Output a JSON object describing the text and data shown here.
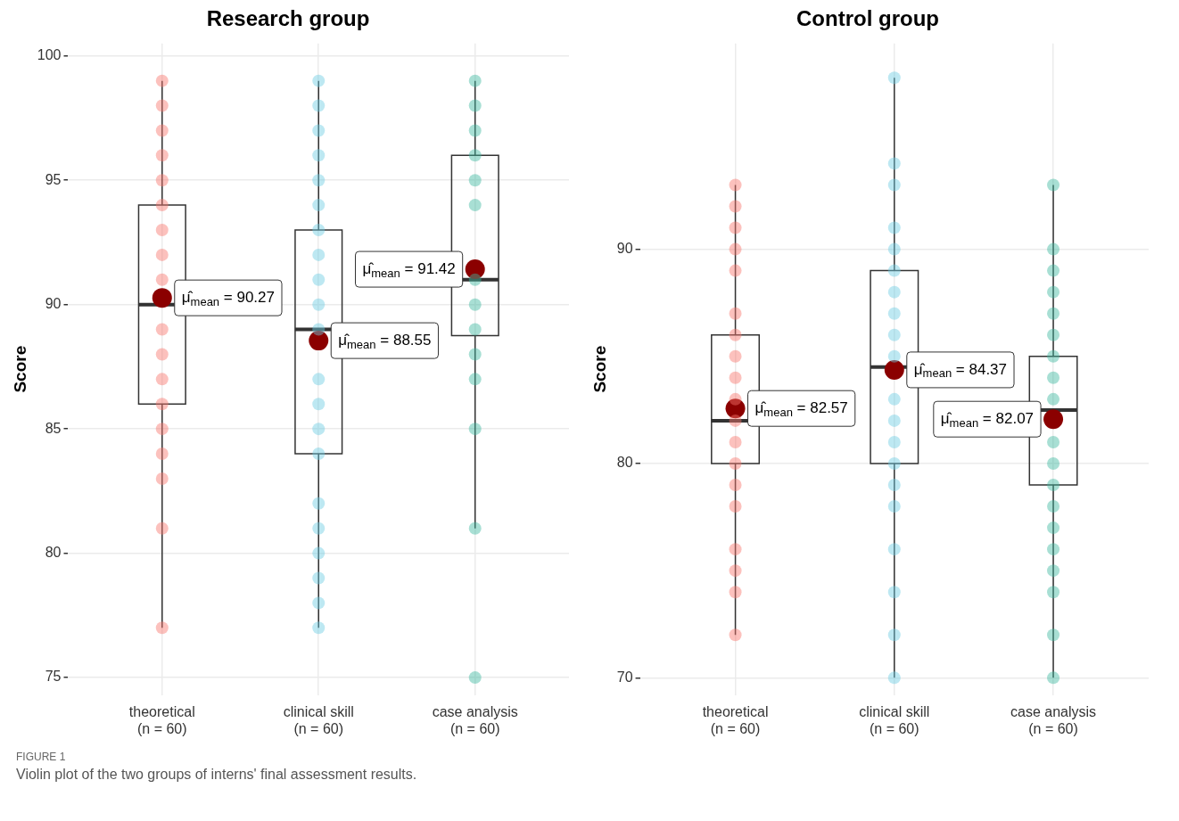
{
  "chart_data": [
    {
      "type": "box",
      "title": "Research group",
      "ylabel": "Score",
      "categories": [
        "theoretical\n(n = 60)",
        "clinical skill\n(n = 60)",
        "case analysis\n(n = 60)"
      ],
      "ylim": [
        74.3,
        100.5
      ],
      "yticks": [
        75,
        80,
        85,
        90,
        95,
        100
      ],
      "grid": true,
      "marker": "circle",
      "series": [
        {
          "type": "box",
          "color": "#333333",
          "boxes": [
            {
              "low": 77,
              "q1": 86,
              "median": 90,
              "q3": 94,
              "high": 99
            },
            {
              "low": 77,
              "q1": 84,
              "median": 89,
              "q3": 93,
              "high": 99
            },
            {
              "low": 81,
              "q1": 88.75,
              "median": 91,
              "q3": 96,
              "high": 99
            }
          ]
        },
        {
          "type": "scatter",
          "color": "#f8766d",
          "x": [
            "theoretical\n(n = 60)",
            "theoretical\n(n = 60)",
            "theoretical\n(n = 60)",
            "theoretical\n(n = 60)",
            "theoretical\n(n = 60)",
            "theoretical\n(n = 60)",
            "theoretical\n(n = 60)",
            "theoretical\n(n = 60)",
            "theoretical\n(n = 60)",
            "theoretical\n(n = 60)",
            "theoretical\n(n = 60)",
            "theoretical\n(n = 60)",
            "theoretical\n(n = 60)",
            "theoretical\n(n = 60)",
            "theoretical\n(n = 60)",
            "theoretical\n(n = 60)",
            "theoretical\n(n = 60)",
            "theoretical\n(n = 60)"
          ],
          "values": [
            99,
            98,
            97,
            96,
            95,
            94,
            93,
            92,
            91,
            89,
            88,
            87,
            86,
            85,
            84,
            83,
            81,
            77
          ]
        },
        {
          "type": "scatter",
          "color": "#6ccbe2",
          "x": [
            "clinical skill\n(n = 60)",
            "clinical skill\n(n = 60)",
            "clinical skill\n(n = 60)",
            "clinical skill\n(n = 60)",
            "clinical skill\n(n = 60)",
            "clinical skill\n(n = 60)",
            "clinical skill\n(n = 60)",
            "clinical skill\n(n = 60)",
            "clinical skill\n(n = 60)",
            "clinical skill\n(n = 60)",
            "clinical skill\n(n = 60)",
            "clinical skill\n(n = 60)",
            "clinical skill\n(n = 60)",
            "clinical skill\n(n = 60)",
            "clinical skill\n(n = 60)",
            "clinical skill\n(n = 60)",
            "clinical skill\n(n = 60)",
            "clinical skill\n(n = 60)",
            "clinical skill\n(n = 60)",
            "clinical skill\n(n = 60)",
            "clinical skill\n(n = 60)"
          ],
          "values": [
            99,
            98,
            97,
            96,
            95,
            94,
            93,
            92,
            91,
            90,
            89,
            87,
            86,
            85,
            84,
            82,
            81,
            80,
            79,
            78,
            77
          ]
        },
        {
          "type": "scatter",
          "color": "#3fb8a0",
          "x": [
            "case analysis\n(n = 60)",
            "case analysis\n(n = 60)",
            "case analysis\n(n = 60)",
            "case analysis\n(n = 60)",
            "case analysis\n(n = 60)",
            "case analysis\n(n = 60)",
            "case analysis\n(n = 60)",
            "case analysis\n(n = 60)",
            "case analysis\n(n = 60)",
            "case analysis\n(n = 60)",
            "case analysis\n(n = 60)",
            "case analysis\n(n = 60)",
            "case analysis\n(n = 60)",
            "case analysis\n(n = 60)"
          ],
          "values": [
            99,
            98,
            97,
            96,
            95,
            94,
            91,
            90,
            89,
            88,
            87,
            85,
            81,
            75
          ]
        },
        {
          "type": "scatter",
          "color": "#8b0000",
          "x": [
            "theoretical\n(n = 60)",
            "clinical skill\n(n = 60)",
            "case analysis\n(n = 60)"
          ],
          "values": [
            90.27,
            88.55,
            91.42
          ]
        }
      ],
      "annotations": [
        {
          "text": "μ̂$_{mean}$ = 90.27",
          "x": "theoretical\n(n = 60)",
          "y": 90.27
        },
        {
          "text": "μ̂$_{mean}$ = 88.55",
          "x": "clinical skill\n(n = 60)",
          "y": 88.55
        },
        {
          "text": "μ̂$_{mean}$ = 91.42",
          "x": "case analysis\n(n = 60)",
          "y": 91.42
        },
        "FIGURE 1",
        "Violin plot of the two groups of interns' final assessment results."
      ]
    },
    {
      "type": "box",
      "title": "Control group",
      "ylabel": "Score",
      "categories": [
        "theoretical\n(n = 60)",
        "clinical skill\n(n = 60)",
        "case analysis\n(n = 60)"
      ],
      "ylim": [
        69.2,
        99.6
      ],
      "yticks": [
        70,
        80,
        90
      ],
      "grid": true,
      "marker": "circle",
      "series": [
        {
          "type": "box",
          "color": "#333333",
          "boxes": [
            {
              "low": 72,
              "q1": 80,
              "median": 82,
              "q3": 86,
              "high": 93
            },
            {
              "low": 70,
              "q1": 80,
              "median": 84.5,
              "q3": 89,
              "high": 98
            },
            {
              "low": 70,
              "q1": 79,
              "median": 82.5,
              "q3": 85,
              "high": 93
            }
          ]
        },
        {
          "type": "scatter",
          "color": "#f8766d",
          "x": [
            "theoretical\n(n = 60)",
            "theoretical\n(n = 60)",
            "theoretical\n(n = 60)",
            "theoretical\n(n = 60)",
            "theoretical\n(n = 60)",
            "theoretical\n(n = 60)",
            "theoretical\n(n = 60)",
            "theoretical\n(n = 60)",
            "theoretical\n(n = 60)",
            "theoretical\n(n = 60)",
            "theoretical\n(n = 60)",
            "theoretical\n(n = 60)",
            "theoretical\n(n = 60)",
            "theoretical\n(n = 60)",
            "theoretical\n(n = 60)",
            "theoretical\n(n = 60)",
            "theoretical\n(n = 60)",
            "theoretical\n(n = 60)",
            "theoretical\n(n = 60)"
          ],
          "values": [
            93,
            92,
            91,
            90,
            89,
            87,
            86,
            85,
            84,
            83,
            82,
            81,
            80,
            79,
            78,
            76,
            75,
            74,
            72
          ]
        },
        {
          "type": "scatter",
          "color": "#6ccbe2",
          "x": [
            "clinical skill\n(n = 60)",
            "clinical skill\n(n = 60)",
            "clinical skill\n(n = 60)",
            "clinical skill\n(n = 60)",
            "clinical skill\n(n = 60)",
            "clinical skill\n(n = 60)",
            "clinical skill\n(n = 60)",
            "clinical skill\n(n = 60)",
            "clinical skill\n(n = 60)",
            "clinical skill\n(n = 60)",
            "clinical skill\n(n = 60)",
            "clinical skill\n(n = 60)",
            "clinical skill\n(n = 60)",
            "clinical skill\n(n = 60)",
            "clinical skill\n(n = 60)",
            "clinical skill\n(n = 60)",
            "clinical skill\n(n = 60)",
            "clinical skill\n(n = 60)",
            "clinical skill\n(n = 60)",
            "clinical skill\n(n = 60)"
          ],
          "values": [
            98,
            94,
            93,
            91,
            90,
            89,
            88,
            87,
            86,
            85,
            83,
            82,
            81,
            80,
            79,
            78,
            76,
            74,
            72,
            70
          ]
        },
        {
          "type": "scatter",
          "color": "#3fb8a0",
          "x": [
            "case analysis\n(n = 60)",
            "case analysis\n(n = 60)",
            "case analysis\n(n = 60)",
            "case analysis\n(n = 60)",
            "case analysis\n(n = 60)",
            "case analysis\n(n = 60)",
            "case analysis\n(n = 60)",
            "case analysis\n(n = 60)",
            "case analysis\n(n = 60)",
            "case analysis\n(n = 60)",
            "case analysis\n(n = 60)",
            "case analysis\n(n = 60)",
            "case analysis\n(n = 60)",
            "case analysis\n(n = 60)",
            "case analysis\n(n = 60)",
            "case analysis\n(n = 60)",
            "case analysis\n(n = 60)",
            "case analysis\n(n = 60)",
            "case analysis\n(n = 60)",
            "case analysis\n(n = 60)"
          ],
          "values": [
            93,
            90,
            89,
            88,
            87,
            86,
            85,
            84,
            83,
            null,
            81,
            80,
            79,
            78,
            77,
            76,
            75,
            74,
            72,
            70
          ]
        },
        {
          "type": "scatter",
          "color": "#8b0000",
          "x": [
            "theoretical\n(n = 60)",
            "clinical skill\n(n = 60)",
            "case analysis\n(n = 60)"
          ],
          "values": [
            82.57,
            84.37,
            82.07
          ]
        }
      ],
      "annotations": [
        {
          "text": "μ̂$_{mean}$ = 82.57",
          "x": "theoretical\n(n = 60)",
          "y": 82.57
        },
        {
          "text": "μ̂$_{mean}$ = 84.37",
          "x": "clinical skill\n(n = 60)",
          "y": 84.37
        },
        {
          "text": "μ̂$_{mean}$ = 82.07",
          "x": "case analysis\n(n = 60)",
          "y": 82.07
        }
      ]
    }
  ]
}
